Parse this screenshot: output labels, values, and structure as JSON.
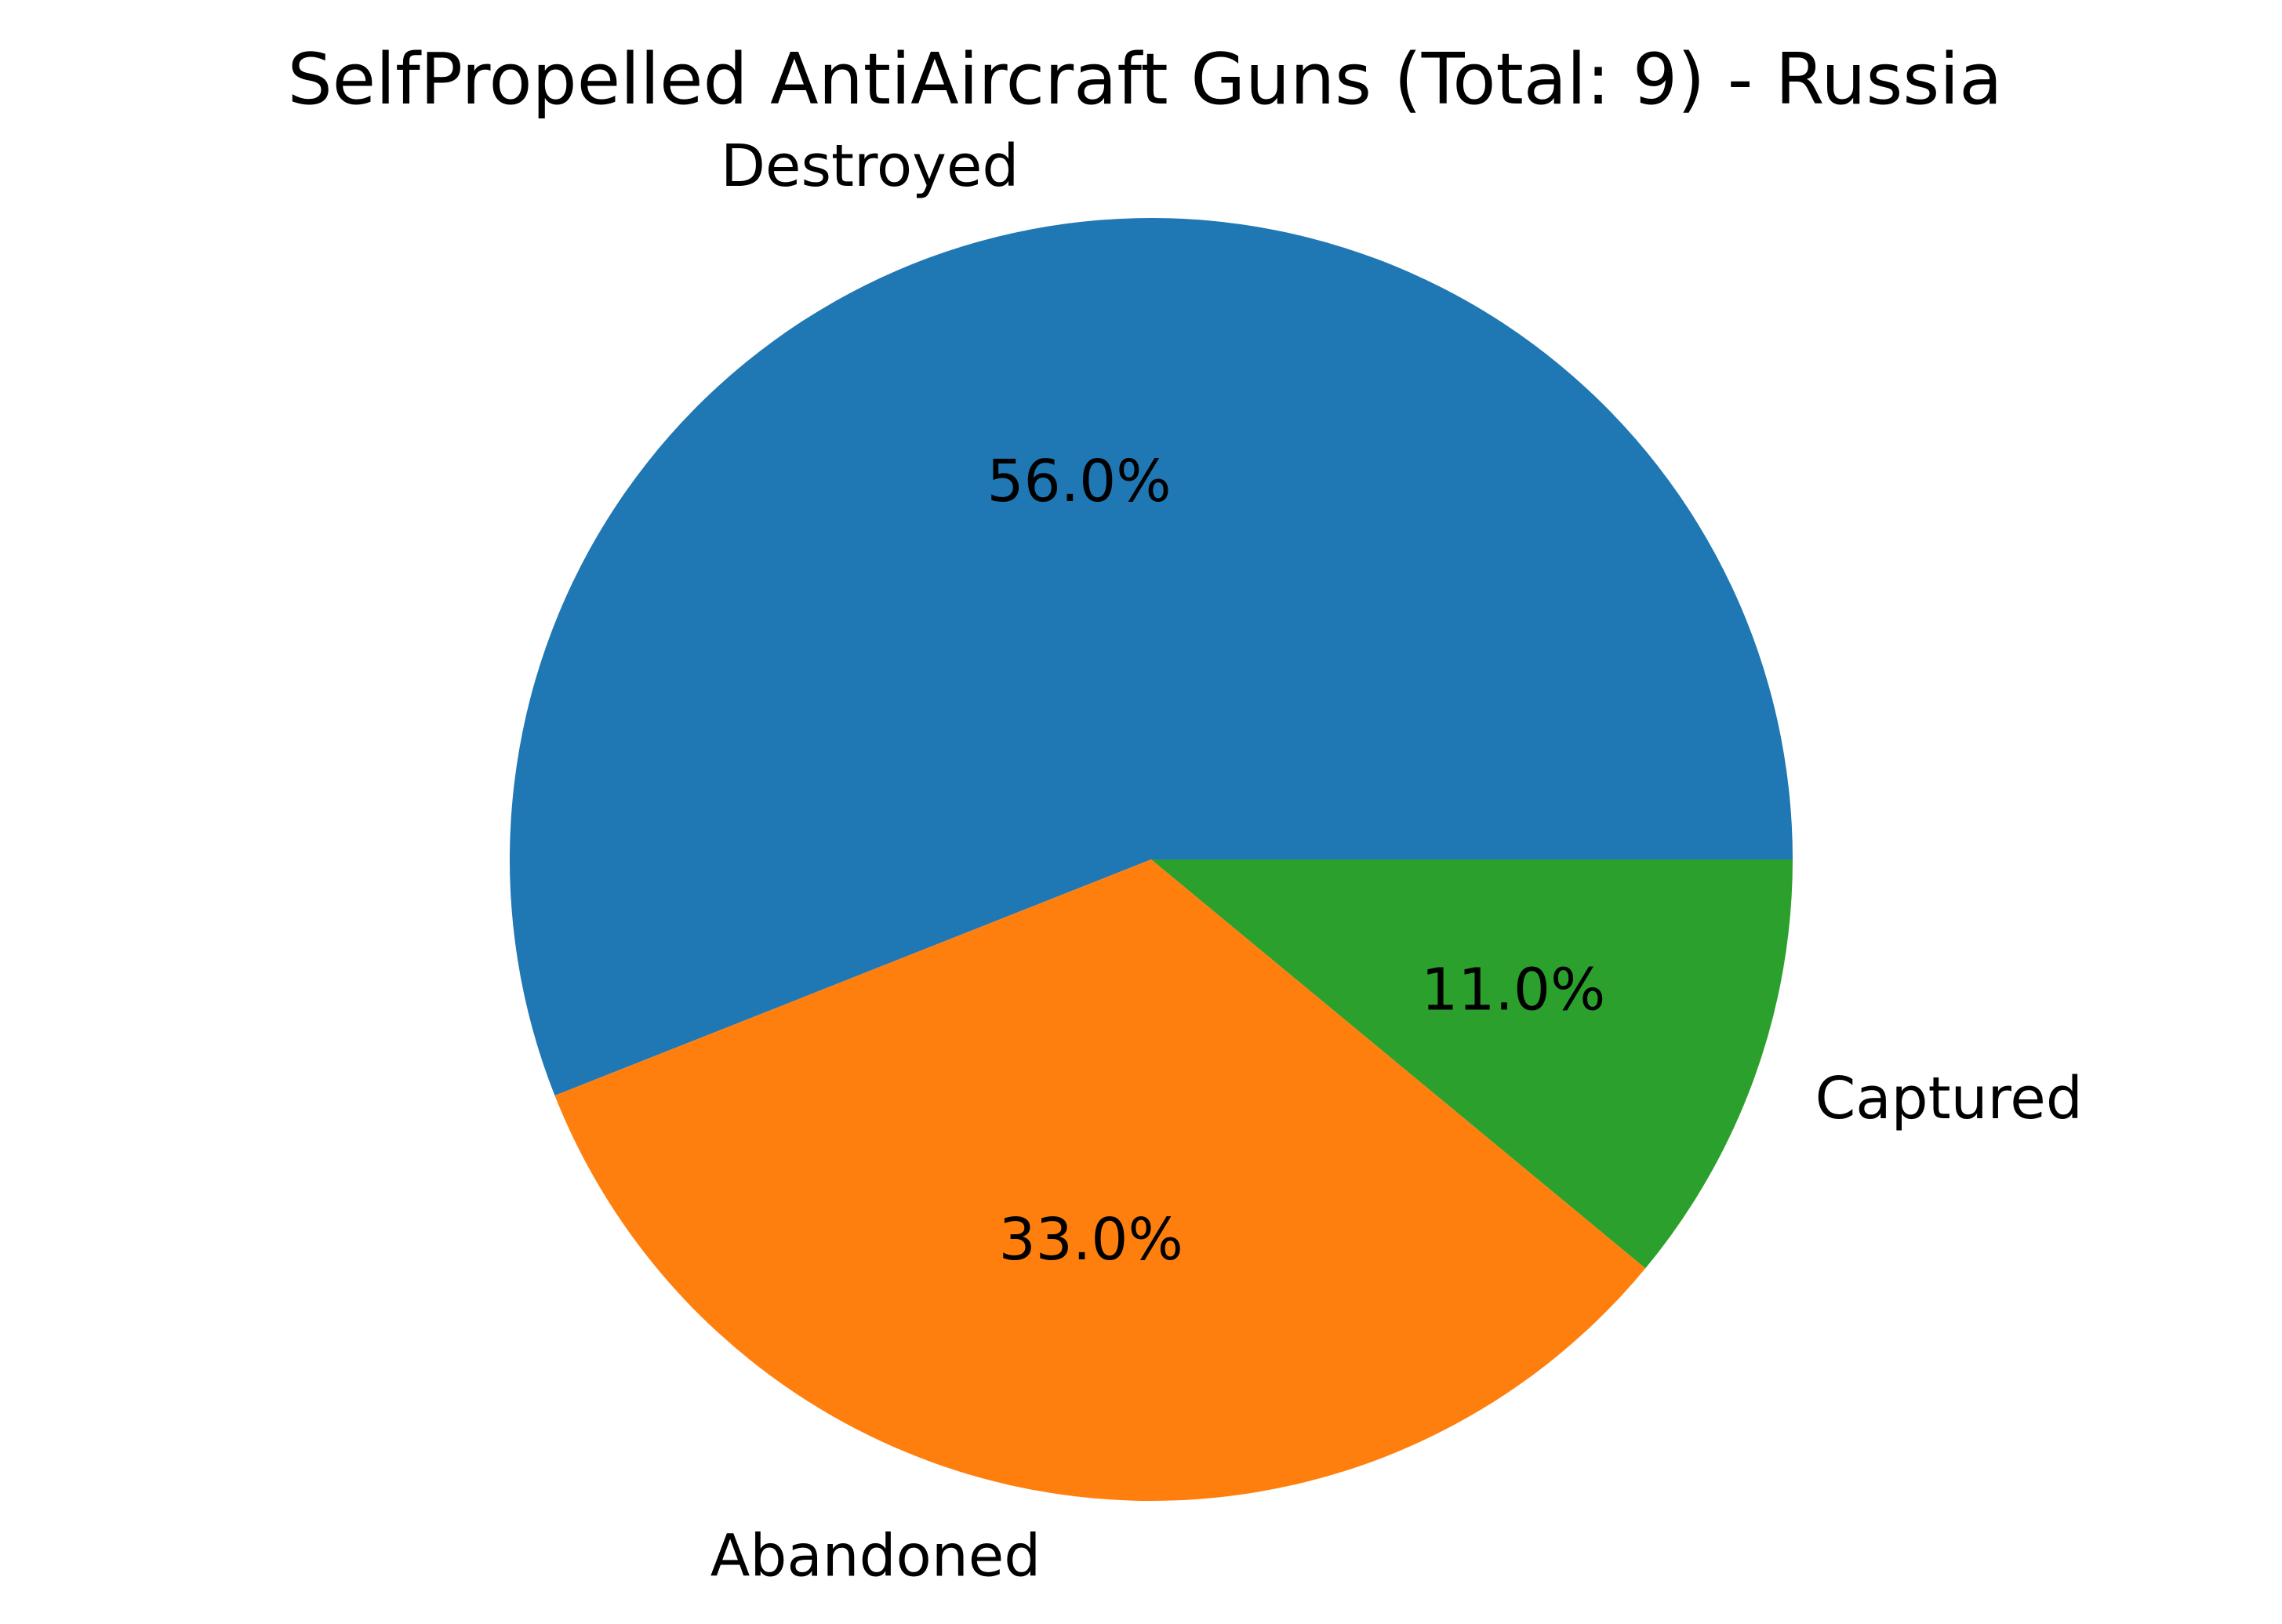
{
  "chart_data": {
    "type": "pie",
    "title": "SelfPropelled AntiAircraft Guns (Total: 9) - Russia",
    "categories": [
      "Destroyed",
      "Abandoned",
      "Captured"
    ],
    "values": [
      56.0,
      33.0,
      11.0
    ],
    "value_labels": [
      "56.0%",
      "33.0%",
      "11.0%"
    ],
    "colors": [
      "#1f77b4",
      "#ff7f0e",
      "#2ca02c"
    ],
    "start_angle_deg": 0,
    "direction": "counterclockwise",
    "legend": "none"
  }
}
